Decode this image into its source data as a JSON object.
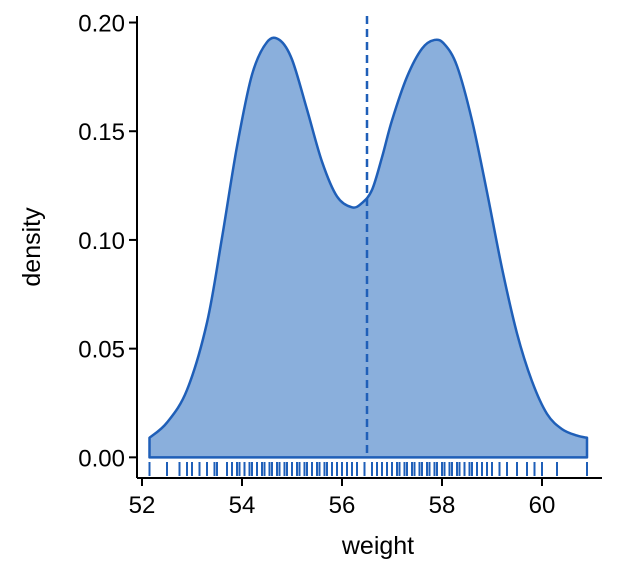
{
  "chart_data": {
    "type": "area",
    "xlabel": "weight",
    "ylabel": "density",
    "xlim": [
      51.9,
      61.2
    ],
    "ylim": [
      -0.0095,
      0.203
    ],
    "x_ticks": [
      52,
      54,
      56,
      58,
      60
    ],
    "y_ticks": [
      0.0,
      0.05,
      0.1,
      0.15,
      0.2
    ],
    "y_tick_labels": [
      "0.00",
      "0.05",
      "0.10",
      "0.15",
      "0.20"
    ],
    "grid": false,
    "legend": "none",
    "mean_line": {
      "x": 56.5,
      "style": "dashed"
    },
    "density": {
      "x": [
        52.15,
        52.5,
        52.9,
        53.3,
        53.6,
        53.9,
        54.2,
        54.5,
        54.75,
        55.0,
        55.3,
        55.6,
        55.9,
        56.2,
        56.4,
        56.6,
        56.8,
        57.0,
        57.3,
        57.6,
        57.85,
        58.05,
        58.3,
        58.6,
        58.9,
        59.2,
        59.5,
        59.8,
        60.1,
        60.4,
        60.7,
        60.9
      ],
      "y": [
        0.009,
        0.016,
        0.031,
        0.062,
        0.101,
        0.143,
        0.176,
        0.191,
        0.192,
        0.183,
        0.16,
        0.136,
        0.12,
        0.115,
        0.117,
        0.123,
        0.138,
        0.155,
        0.175,
        0.188,
        0.192,
        0.19,
        0.18,
        0.155,
        0.122,
        0.087,
        0.057,
        0.035,
        0.02,
        0.013,
        0.01,
        0.009
      ]
    },
    "rug": [
      52.15,
      52.5,
      52.75,
      52.9,
      53.0,
      53.15,
      53.3,
      53.45,
      53.5,
      53.7,
      53.8,
      53.9,
      53.95,
      54.05,
      54.15,
      54.2,
      54.3,
      54.4,
      54.45,
      54.55,
      54.6,
      54.7,
      54.75,
      54.85,
      54.9,
      55.0,
      55.1,
      55.15,
      55.25,
      55.3,
      55.4,
      55.5,
      55.55,
      55.65,
      55.7,
      55.8,
      55.9,
      56.0,
      56.1,
      56.2,
      56.3,
      56.45,
      56.6,
      56.7,
      56.8,
      56.9,
      57.0,
      57.1,
      57.15,
      57.25,
      57.3,
      57.4,
      57.45,
      57.55,
      57.6,
      57.7,
      57.75,
      57.85,
      57.9,
      58.0,
      58.05,
      58.15,
      58.2,
      58.3,
      58.35,
      58.45,
      58.55,
      58.6,
      58.7,
      58.8,
      58.9,
      59.0,
      59.15,
      59.3,
      59.5,
      59.7,
      59.85,
      60.0,
      60.3,
      60.9
    ],
    "colors": {
      "line": "#1f5fb8",
      "fill": "#8aafdc",
      "rug": "#1f5fb8"
    }
  }
}
